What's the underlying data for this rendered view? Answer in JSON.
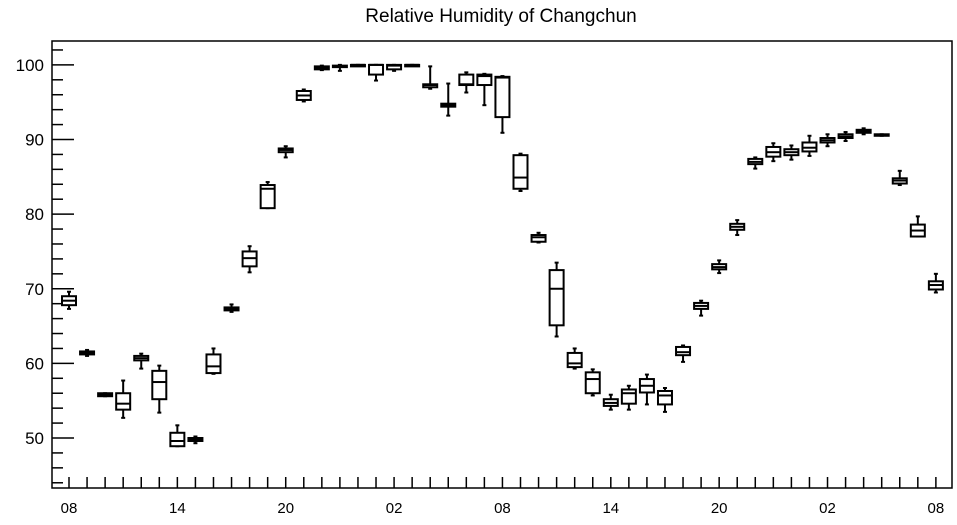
{
  "chart_data": {
    "type": "box",
    "title": "Relative Humidity of Changchun",
    "xlabel": "",
    "ylabel": "",
    "ylim": [
      43.3,
      103.2
    ],
    "y_ticks": [
      50,
      60,
      70,
      80,
      90,
      100
    ],
    "y_minor_step": 2,
    "x_ticks": [
      {
        "index": 0,
        "label": "08"
      },
      {
        "index": 6,
        "label": "14"
      },
      {
        "index": 12,
        "label": "20"
      },
      {
        "index": 18,
        "label": "02"
      },
      {
        "index": 24,
        "label": "08"
      },
      {
        "index": 30,
        "label": "14"
      },
      {
        "index": 36,
        "label": "20"
      },
      {
        "index": 42,
        "label": "02"
      },
      {
        "index": 48,
        "label": "08"
      }
    ],
    "grid": false,
    "legend": "none",
    "boxes": [
      {
        "index": 0,
        "low": 67.3,
        "q1": 67.8,
        "median": 68.4,
        "q3": 69.0,
        "high": 69.6
      },
      {
        "index": 1,
        "low": 61.0,
        "q1": 61.2,
        "median": 61.4,
        "q3": 61.6,
        "high": 61.8
      },
      {
        "index": 2,
        "low": 55.6,
        "q1": 55.6,
        "median": 55.8,
        "q3": 56.0,
        "high": 56.0
      },
      {
        "index": 3,
        "low": 52.7,
        "q1": 53.8,
        "median": 54.6,
        "q3": 56.0,
        "high": 57.7
      },
      {
        "index": 4,
        "low": 59.3,
        "q1": 60.4,
        "median": 60.7,
        "q3": 61.0,
        "high": 61.3
      },
      {
        "index": 5,
        "low": 53.4,
        "q1": 55.2,
        "median": 57.5,
        "q3": 59.0,
        "high": 59.7
      },
      {
        "index": 6,
        "low": 48.9,
        "q1": 48.9,
        "median": 49.6,
        "q3": 50.7,
        "high": 51.7
      },
      {
        "index": 7,
        "low": 49.3,
        "q1": 49.6,
        "median": 49.8,
        "q3": 50.0,
        "high": 50.2
      },
      {
        "index": 8,
        "low": 58.6,
        "q1": 58.7,
        "median": 59.6,
        "q3": 61.2,
        "high": 62.0
      },
      {
        "index": 9,
        "low": 66.9,
        "q1": 67.1,
        "median": 67.3,
        "q3": 67.5,
        "high": 67.9
      },
      {
        "index": 10,
        "low": 72.2,
        "q1": 73.0,
        "median": 74.1,
        "q3": 75.0,
        "high": 75.7
      },
      {
        "index": 11,
        "low": 80.8,
        "q1": 80.8,
        "median": 83.4,
        "q3": 83.9,
        "high": 84.3
      },
      {
        "index": 12,
        "low": 87.6,
        "q1": 88.3,
        "median": 88.6,
        "q3": 88.8,
        "high": 89.1
      },
      {
        "index": 13,
        "low": 95.1,
        "q1": 95.3,
        "median": 95.9,
        "q3": 96.5,
        "high": 96.7
      },
      {
        "index": 14,
        "low": 99.3,
        "q1": 99.4,
        "median": 99.6,
        "q3": 99.8,
        "high": 99.9
      },
      {
        "index": 15,
        "low": 99.2,
        "q1": 99.7,
        "median": 99.8,
        "q3": 99.9,
        "high": 100.0
      },
      {
        "index": 16,
        "low": 99.9,
        "q1": 100.0,
        "median": 100.0,
        "q3": 100.0,
        "high": 100.0
      },
      {
        "index": 17,
        "low": 97.9,
        "q1": 98.7,
        "median": 100.0,
        "q3": 100.0,
        "high": 100.0
      },
      {
        "index": 18,
        "low": 99.2,
        "q1": 99.4,
        "median": 99.9,
        "q3": 100.0,
        "high": 100.0
      },
      {
        "index": 19,
        "low": 99.9,
        "q1": 100.0,
        "median": 100.0,
        "q3": 100.0,
        "high": 100.0
      },
      {
        "index": 20,
        "low": 96.8,
        "q1": 97.0,
        "median": 97.3,
        "q3": 97.4,
        "high": 99.8
      },
      {
        "index": 21,
        "low": 93.2,
        "q1": 94.4,
        "median": 94.6,
        "q3": 94.8,
        "high": 97.5
      },
      {
        "index": 22,
        "low": 96.3,
        "q1": 97.3,
        "median": 97.4,
        "q3": 98.7,
        "high": 99.0
      },
      {
        "index": 23,
        "low": 94.6,
        "q1": 97.3,
        "median": 98.5,
        "q3": 98.7,
        "high": 98.8
      },
      {
        "index": 24,
        "low": 90.9,
        "q1": 93.0,
        "median": 98.3,
        "q3": 98.4,
        "high": 98.5
      },
      {
        "index": 25,
        "low": 83.1,
        "q1": 83.4,
        "median": 84.9,
        "q3": 87.9,
        "high": 88.1
      },
      {
        "index": 26,
        "low": 76.2,
        "q1": 76.3,
        "median": 76.9,
        "q3": 77.2,
        "high": 77.5
      },
      {
        "index": 27,
        "low": 63.6,
        "q1": 65.1,
        "median": 70.0,
        "q3": 72.5,
        "high": 73.5
      },
      {
        "index": 28,
        "low": 59.3,
        "q1": 59.5,
        "median": 60.0,
        "q3": 61.4,
        "high": 62.0
      },
      {
        "index": 29,
        "low": 55.7,
        "q1": 56.0,
        "median": 57.9,
        "q3": 58.8,
        "high": 59.2
      },
      {
        "index": 30,
        "low": 53.8,
        "q1": 54.3,
        "median": 54.7,
        "q3": 55.2,
        "high": 55.8
      },
      {
        "index": 31,
        "low": 53.8,
        "q1": 54.6,
        "median": 56.0,
        "q3": 56.5,
        "high": 57.0
      },
      {
        "index": 32,
        "low": 54.5,
        "q1": 56.1,
        "median": 57.0,
        "q3": 57.9,
        "high": 58.5
      },
      {
        "index": 33,
        "low": 53.5,
        "q1": 54.5,
        "median": 55.7,
        "q3": 56.3,
        "high": 56.7
      },
      {
        "index": 34,
        "low": 60.2,
        "q1": 61.1,
        "median": 61.5,
        "q3": 62.2,
        "high": 62.4
      },
      {
        "index": 35,
        "low": 66.4,
        "q1": 67.3,
        "median": 67.7,
        "q3": 68.1,
        "high": 68.4
      },
      {
        "index": 36,
        "low": 72.1,
        "q1": 72.6,
        "median": 72.9,
        "q3": 73.3,
        "high": 73.8
      },
      {
        "index": 37,
        "low": 77.2,
        "q1": 77.9,
        "median": 78.3,
        "q3": 78.7,
        "high": 79.2
      },
      {
        "index": 38,
        "low": 86.1,
        "q1": 86.7,
        "median": 87.0,
        "q3": 87.4,
        "high": 87.6
      },
      {
        "index": 39,
        "low": 87.1,
        "q1": 87.7,
        "median": 88.3,
        "q3": 89.0,
        "high": 89.5
      },
      {
        "index": 40,
        "low": 87.3,
        "q1": 87.9,
        "median": 88.3,
        "q3": 88.7,
        "high": 89.2
      },
      {
        "index": 41,
        "low": 87.8,
        "q1": 88.4,
        "median": 88.9,
        "q3": 89.6,
        "high": 90.5
      },
      {
        "index": 42,
        "low": 89.1,
        "q1": 89.6,
        "median": 89.9,
        "q3": 90.2,
        "high": 90.7
      },
      {
        "index": 43,
        "low": 89.8,
        "q1": 90.2,
        "median": 90.4,
        "q3": 90.7,
        "high": 91.0
      },
      {
        "index": 44,
        "low": 90.7,
        "q1": 90.9,
        "median": 91.1,
        "q3": 91.3,
        "high": 91.5
      },
      {
        "index": 45,
        "low": 90.5,
        "q1": 90.6,
        "median": 90.6,
        "q3": 90.7,
        "high": 90.7
      },
      {
        "index": 46,
        "low": 83.9,
        "q1": 84.1,
        "median": 84.5,
        "q3": 84.8,
        "high": 85.8
      },
      {
        "index": 47,
        "low": 77.0,
        "q1": 77.0,
        "median": 77.8,
        "q3": 78.6,
        "high": 79.7
      },
      {
        "index": 48,
        "low": 69.5,
        "q1": 69.9,
        "median": 70.5,
        "q3": 71.0,
        "high": 72.0
      }
    ],
    "colors": {
      "stroke": "#000000",
      "background": "#ffffff"
    }
  }
}
